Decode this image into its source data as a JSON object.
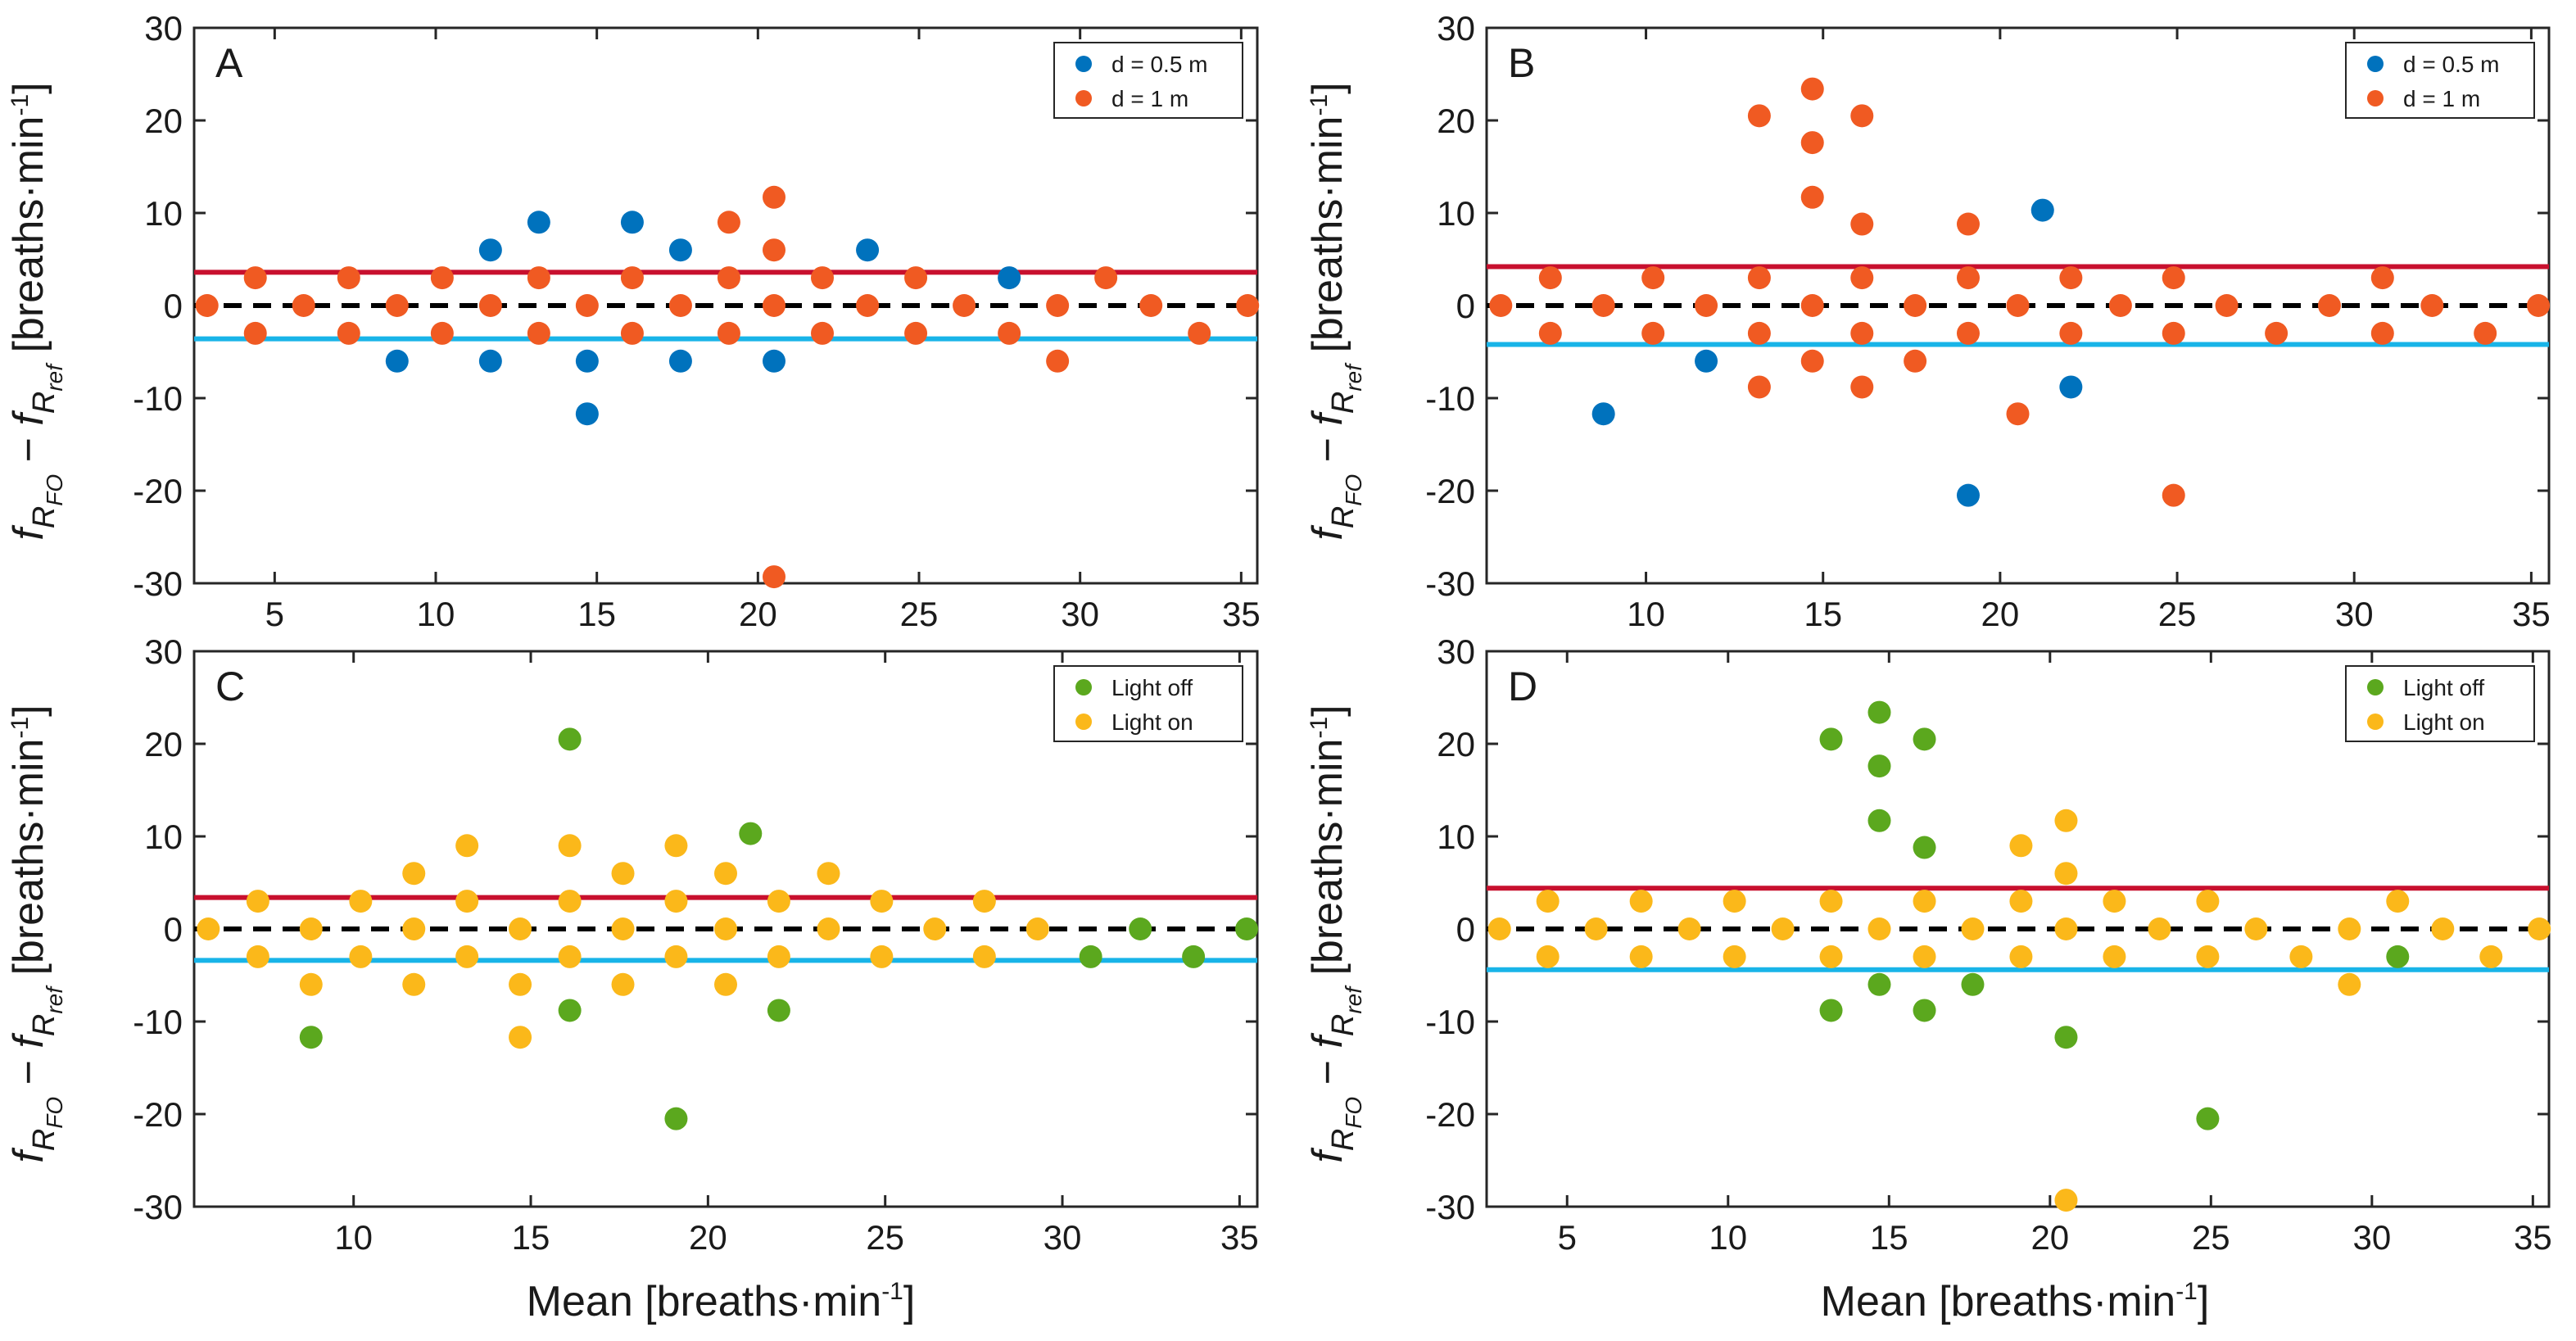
{
  "figure": {
    "colors": {
      "d05": "#0072BD",
      "d1": "#F05A22",
      "light_off": "#5BA81E",
      "light_on": "#FBB81A",
      "upper_loa": "#C8102E",
      "lower_loa": "#18B4E8",
      "bias": "#000000"
    },
    "xlabel_shared": "Mean [breaths·min-1]",
    "ylabel_shared": "fRFO − fRref [breaths·min-1]"
  },
  "chart_data": [
    {
      "type": "scatter",
      "panel": "A",
      "xlim": [
        2.5,
        35.5
      ],
      "ylim": [
        -30,
        30
      ],
      "xticks": [
        5,
        10,
        15,
        20,
        25,
        30,
        35
      ],
      "yticks": [
        -30,
        -20,
        -10,
        0,
        10,
        20,
        30
      ],
      "show_xtick_labels": true,
      "legend_position": "top-right",
      "bias": 0,
      "upper_loa": 3.6,
      "lower_loa": -3.6,
      "series": [
        {
          "name": "d = 0.5 m",
          "color_key": "d05",
          "points": [
            [
              8.8,
              -6
            ],
            [
              11.7,
              6
            ],
            [
              11.7,
              -6
            ],
            [
              13.2,
              9
            ],
            [
              14.7,
              -6
            ],
            [
              14.7,
              -11.7
            ],
            [
              16.1,
              9
            ],
            [
              17.6,
              6
            ],
            [
              17.6,
              -6
            ],
            [
              20.5,
              -6
            ],
            [
              23.4,
              6
            ],
            [
              27.8,
              3
            ]
          ]
        },
        {
          "name": "d = 1 m",
          "color_key": "d1",
          "points": [
            [
              2.9,
              0
            ],
            [
              4.4,
              3
            ],
            [
              4.4,
              -3
            ],
            [
              5.9,
              0
            ],
            [
              7.3,
              3
            ],
            [
              7.3,
              -3
            ],
            [
              8.8,
              0
            ],
            [
              10.2,
              3
            ],
            [
              10.2,
              -3
            ],
            [
              11.7,
              0
            ],
            [
              13.2,
              3
            ],
            [
              13.2,
              -3
            ],
            [
              14.7,
              0
            ],
            [
              16.1,
              3
            ],
            [
              16.1,
              -3
            ],
            [
              17.6,
              0
            ],
            [
              19.1,
              9
            ],
            [
              19.1,
              3
            ],
            [
              19.1,
              -3
            ],
            [
              20.5,
              11.7
            ],
            [
              20.5,
              6
            ],
            [
              20.5,
              0
            ],
            [
              20.5,
              -29.3
            ],
            [
              22,
              3
            ],
            [
              22,
              -3
            ],
            [
              23.4,
              0
            ],
            [
              24.9,
              3
            ],
            [
              24.9,
              -3
            ],
            [
              26.4,
              0
            ],
            [
              27.8,
              -3
            ],
            [
              29.3,
              0
            ],
            [
              29.3,
              -6
            ],
            [
              30.8,
              3
            ],
            [
              32.2,
              0
            ],
            [
              33.7,
              -3
            ],
            [
              35.2,
              0
            ]
          ]
        }
      ]
    },
    {
      "type": "scatter",
      "panel": "B",
      "xlim": [
        5.5,
        35.5
      ],
      "ylim": [
        -30,
        30
      ],
      "xticks": [
        10,
        15,
        20,
        25,
        30,
        35
      ],
      "yticks": [
        -30,
        -20,
        -10,
        0,
        10,
        20,
        30
      ],
      "show_xtick_labels": true,
      "legend_position": "top-right",
      "bias": 0,
      "upper_loa": 4.2,
      "lower_loa": -4.2,
      "series": [
        {
          "name": "d = 0.5 m",
          "color_key": "d05",
          "points": [
            [
              8.8,
              -11.7
            ],
            [
              11.7,
              -6
            ],
            [
              19.1,
              -20.5
            ],
            [
              21.2,
              10.3
            ],
            [
              22,
              -8.8
            ]
          ]
        },
        {
          "name": "d = 1 m",
          "color_key": "d1",
          "points": [
            [
              5.9,
              0
            ],
            [
              7.3,
              3
            ],
            [
              7.3,
              -3
            ],
            [
              8.8,
              0
            ],
            [
              10.2,
              3
            ],
            [
              10.2,
              -3
            ],
            [
              11.7,
              0
            ],
            [
              13.2,
              20.5
            ],
            [
              13.2,
              3
            ],
            [
              13.2,
              -3
            ],
            [
              13.2,
              -8.8
            ],
            [
              14.7,
              23.4
            ],
            [
              14.7,
              17.6
            ],
            [
              14.7,
              11.7
            ],
            [
              14.7,
              0
            ],
            [
              14.7,
              -6
            ],
            [
              16.1,
              20.5
            ],
            [
              16.1,
              8.8
            ],
            [
              16.1,
              3
            ],
            [
              16.1,
              -3
            ],
            [
              16.1,
              -8.8
            ],
            [
              17.6,
              0
            ],
            [
              17.6,
              -6
            ],
            [
              19.1,
              8.8
            ],
            [
              19.1,
              3
            ],
            [
              19.1,
              -3
            ],
            [
              20.5,
              0
            ],
            [
              20.5,
              -11.7
            ],
            [
              22,
              3
            ],
            [
              22,
              -3
            ],
            [
              23.4,
              0
            ],
            [
              24.9,
              3
            ],
            [
              24.9,
              -3
            ],
            [
              24.9,
              -20.5
            ],
            [
              26.4,
              0
            ],
            [
              27.8,
              -3
            ],
            [
              29.3,
              0
            ],
            [
              30.8,
              3
            ],
            [
              30.8,
              -3
            ],
            [
              32.2,
              0
            ],
            [
              33.7,
              -3
            ],
            [
              35.2,
              0
            ]
          ]
        }
      ]
    },
    {
      "type": "scatter",
      "panel": "C",
      "xlim": [
        5.5,
        35.5
      ],
      "ylim": [
        -30,
        30
      ],
      "xticks": [
        10,
        15,
        20,
        25,
        30,
        35
      ],
      "yticks": [
        -30,
        -20,
        -10,
        0,
        10,
        20,
        30
      ],
      "show_xtick_labels": true,
      "legend_position": "top-right",
      "bias": 0,
      "upper_loa": 3.4,
      "lower_loa": -3.4,
      "series": [
        {
          "name": "Light off",
          "color_key": "light_off",
          "points": [
            [
              8.8,
              -11.7
            ],
            [
              16.1,
              20.5
            ],
            [
              16.1,
              -8.8
            ],
            [
              19.1,
              -20.5
            ],
            [
              21.2,
              10.3
            ],
            [
              22,
              -8.8
            ],
            [
              30.8,
              -3
            ],
            [
              32.2,
              0
            ],
            [
              33.7,
              -3
            ],
            [
              35.2,
              0
            ]
          ]
        },
        {
          "name": "Light on",
          "color_key": "light_on",
          "points": [
            [
              5.9,
              0
            ],
            [
              7.3,
              3
            ],
            [
              7.3,
              -3
            ],
            [
              8.8,
              0
            ],
            [
              8.8,
              -6
            ],
            [
              10.2,
              3
            ],
            [
              10.2,
              -3
            ],
            [
              11.7,
              6
            ],
            [
              11.7,
              0
            ],
            [
              11.7,
              -6
            ],
            [
              13.2,
              9
            ],
            [
              13.2,
              3
            ],
            [
              13.2,
              -3
            ],
            [
              14.7,
              0
            ],
            [
              14.7,
              -6
            ],
            [
              14.7,
              -11.7
            ],
            [
              16.1,
              9
            ],
            [
              16.1,
              3
            ],
            [
              16.1,
              -3
            ],
            [
              17.6,
              6
            ],
            [
              17.6,
              0
            ],
            [
              17.6,
              -6
            ],
            [
              19.1,
              9
            ],
            [
              19.1,
              3
            ],
            [
              19.1,
              -3
            ],
            [
              20.5,
              6
            ],
            [
              20.5,
              0
            ],
            [
              20.5,
              -6
            ],
            [
              22,
              3
            ],
            [
              22,
              -3
            ],
            [
              23.4,
              6
            ],
            [
              23.4,
              0
            ],
            [
              24.9,
              3
            ],
            [
              24.9,
              -3
            ],
            [
              26.4,
              0
            ],
            [
              27.8,
              3
            ],
            [
              27.8,
              -3
            ],
            [
              29.3,
              0
            ]
          ]
        }
      ]
    },
    {
      "type": "scatter",
      "panel": "D",
      "xlim": [
        2.5,
        35.5
      ],
      "ylim": [
        -30,
        30
      ],
      "xticks": [
        5,
        10,
        15,
        20,
        25,
        30,
        35
      ],
      "yticks": [
        -30,
        -20,
        -10,
        0,
        10,
        20,
        30
      ],
      "show_xtick_labels": true,
      "legend_position": "top-right",
      "bias": 0,
      "upper_loa": 4.4,
      "lower_loa": -4.4,
      "series": [
        {
          "name": "Light off",
          "color_key": "light_off",
          "points": [
            [
              13.2,
              20.5
            ],
            [
              13.2,
              -8.8
            ],
            [
              14.7,
              23.4
            ],
            [
              14.7,
              17.6
            ],
            [
              14.7,
              11.7
            ],
            [
              14.7,
              -6
            ],
            [
              16.1,
              20.5
            ],
            [
              16.1,
              8.8
            ],
            [
              16.1,
              -8.8
            ],
            [
              17.6,
              -6
            ],
            [
              20.5,
              -11.7
            ],
            [
              24.9,
              -20.5
            ],
            [
              30.8,
              -3
            ]
          ]
        },
        {
          "name": "Light on",
          "color_key": "light_on",
          "points": [
            [
              2.9,
              0
            ],
            [
              4.4,
              3
            ],
            [
              4.4,
              -3
            ],
            [
              5.9,
              0
            ],
            [
              7.3,
              3
            ],
            [
              7.3,
              -3
            ],
            [
              8.8,
              0
            ],
            [
              10.2,
              3
            ],
            [
              10.2,
              -3
            ],
            [
              11.7,
              0
            ],
            [
              13.2,
              3
            ],
            [
              13.2,
              -3
            ],
            [
              14.7,
              0
            ],
            [
              16.1,
              3
            ],
            [
              16.1,
              -3
            ],
            [
              17.6,
              0
            ],
            [
              19.1,
              9
            ],
            [
              19.1,
              3
            ],
            [
              19.1,
              -3
            ],
            [
              20.5,
              11.7
            ],
            [
              20.5,
              6
            ],
            [
              20.5,
              0
            ],
            [
              20.5,
              -29.3
            ],
            [
              22,
              3
            ],
            [
              22,
              -3
            ],
            [
              23.4,
              0
            ],
            [
              24.9,
              3
            ],
            [
              24.9,
              -3
            ],
            [
              26.4,
              0
            ],
            [
              27.8,
              -3
            ],
            [
              29.3,
              0
            ],
            [
              29.3,
              -6
            ],
            [
              30.8,
              3
            ],
            [
              32.2,
              0
            ],
            [
              33.7,
              -3
            ],
            [
              35.2,
              0
            ]
          ]
        }
      ]
    }
  ]
}
